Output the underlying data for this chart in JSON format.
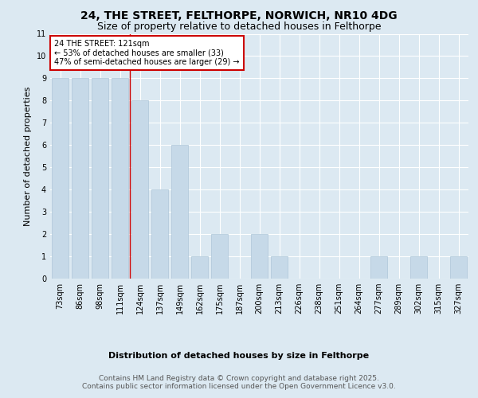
{
  "title": "24, THE STREET, FELTHORPE, NORWICH, NR10 4DG",
  "subtitle": "Size of property relative to detached houses in Felthorpe",
  "xlabel": "Distribution of detached houses by size in Felthorpe",
  "ylabel": "Number of detached properties",
  "categories": [
    "73sqm",
    "86sqm",
    "98sqm",
    "111sqm",
    "124sqm",
    "137sqm",
    "149sqm",
    "162sqm",
    "175sqm",
    "187sqm",
    "200sqm",
    "213sqm",
    "226sqm",
    "238sqm",
    "251sqm",
    "264sqm",
    "277sqm",
    "289sqm",
    "302sqm",
    "315sqm",
    "327sqm"
  ],
  "values": [
    9,
    9,
    9,
    9,
    8,
    4,
    6,
    1,
    2,
    0,
    2,
    1,
    0,
    0,
    0,
    0,
    1,
    0,
    1,
    0,
    1
  ],
  "bar_color": "#c6d9e8",
  "bar_edge_color": "#aec6d8",
  "highlight_index": 4,
  "highlight_line_color": "#cc0000",
  "annotation_text": "24 THE STREET: 121sqm\n← 53% of detached houses are smaller (33)\n47% of semi-detached houses are larger (29) →",
  "annotation_box_color": "#ffffff",
  "annotation_box_edge": "#cc0000",
  "ylim": [
    0,
    11
  ],
  "yticks": [
    0,
    1,
    2,
    3,
    4,
    5,
    6,
    7,
    8,
    9,
    10,
    11
  ],
  "footer_text": "Contains HM Land Registry data © Crown copyright and database right 2025.\nContains public sector information licensed under the Open Government Licence v3.0.",
  "bg_color": "#dce9f2",
  "plot_bg_color": "#dce9f2",
  "grid_color": "#ffffff",
  "title_fontsize": 10,
  "subtitle_fontsize": 9,
  "axis_label_fontsize": 8,
  "tick_fontsize": 7,
  "annotation_fontsize": 7,
  "footer_fontsize": 6.5
}
